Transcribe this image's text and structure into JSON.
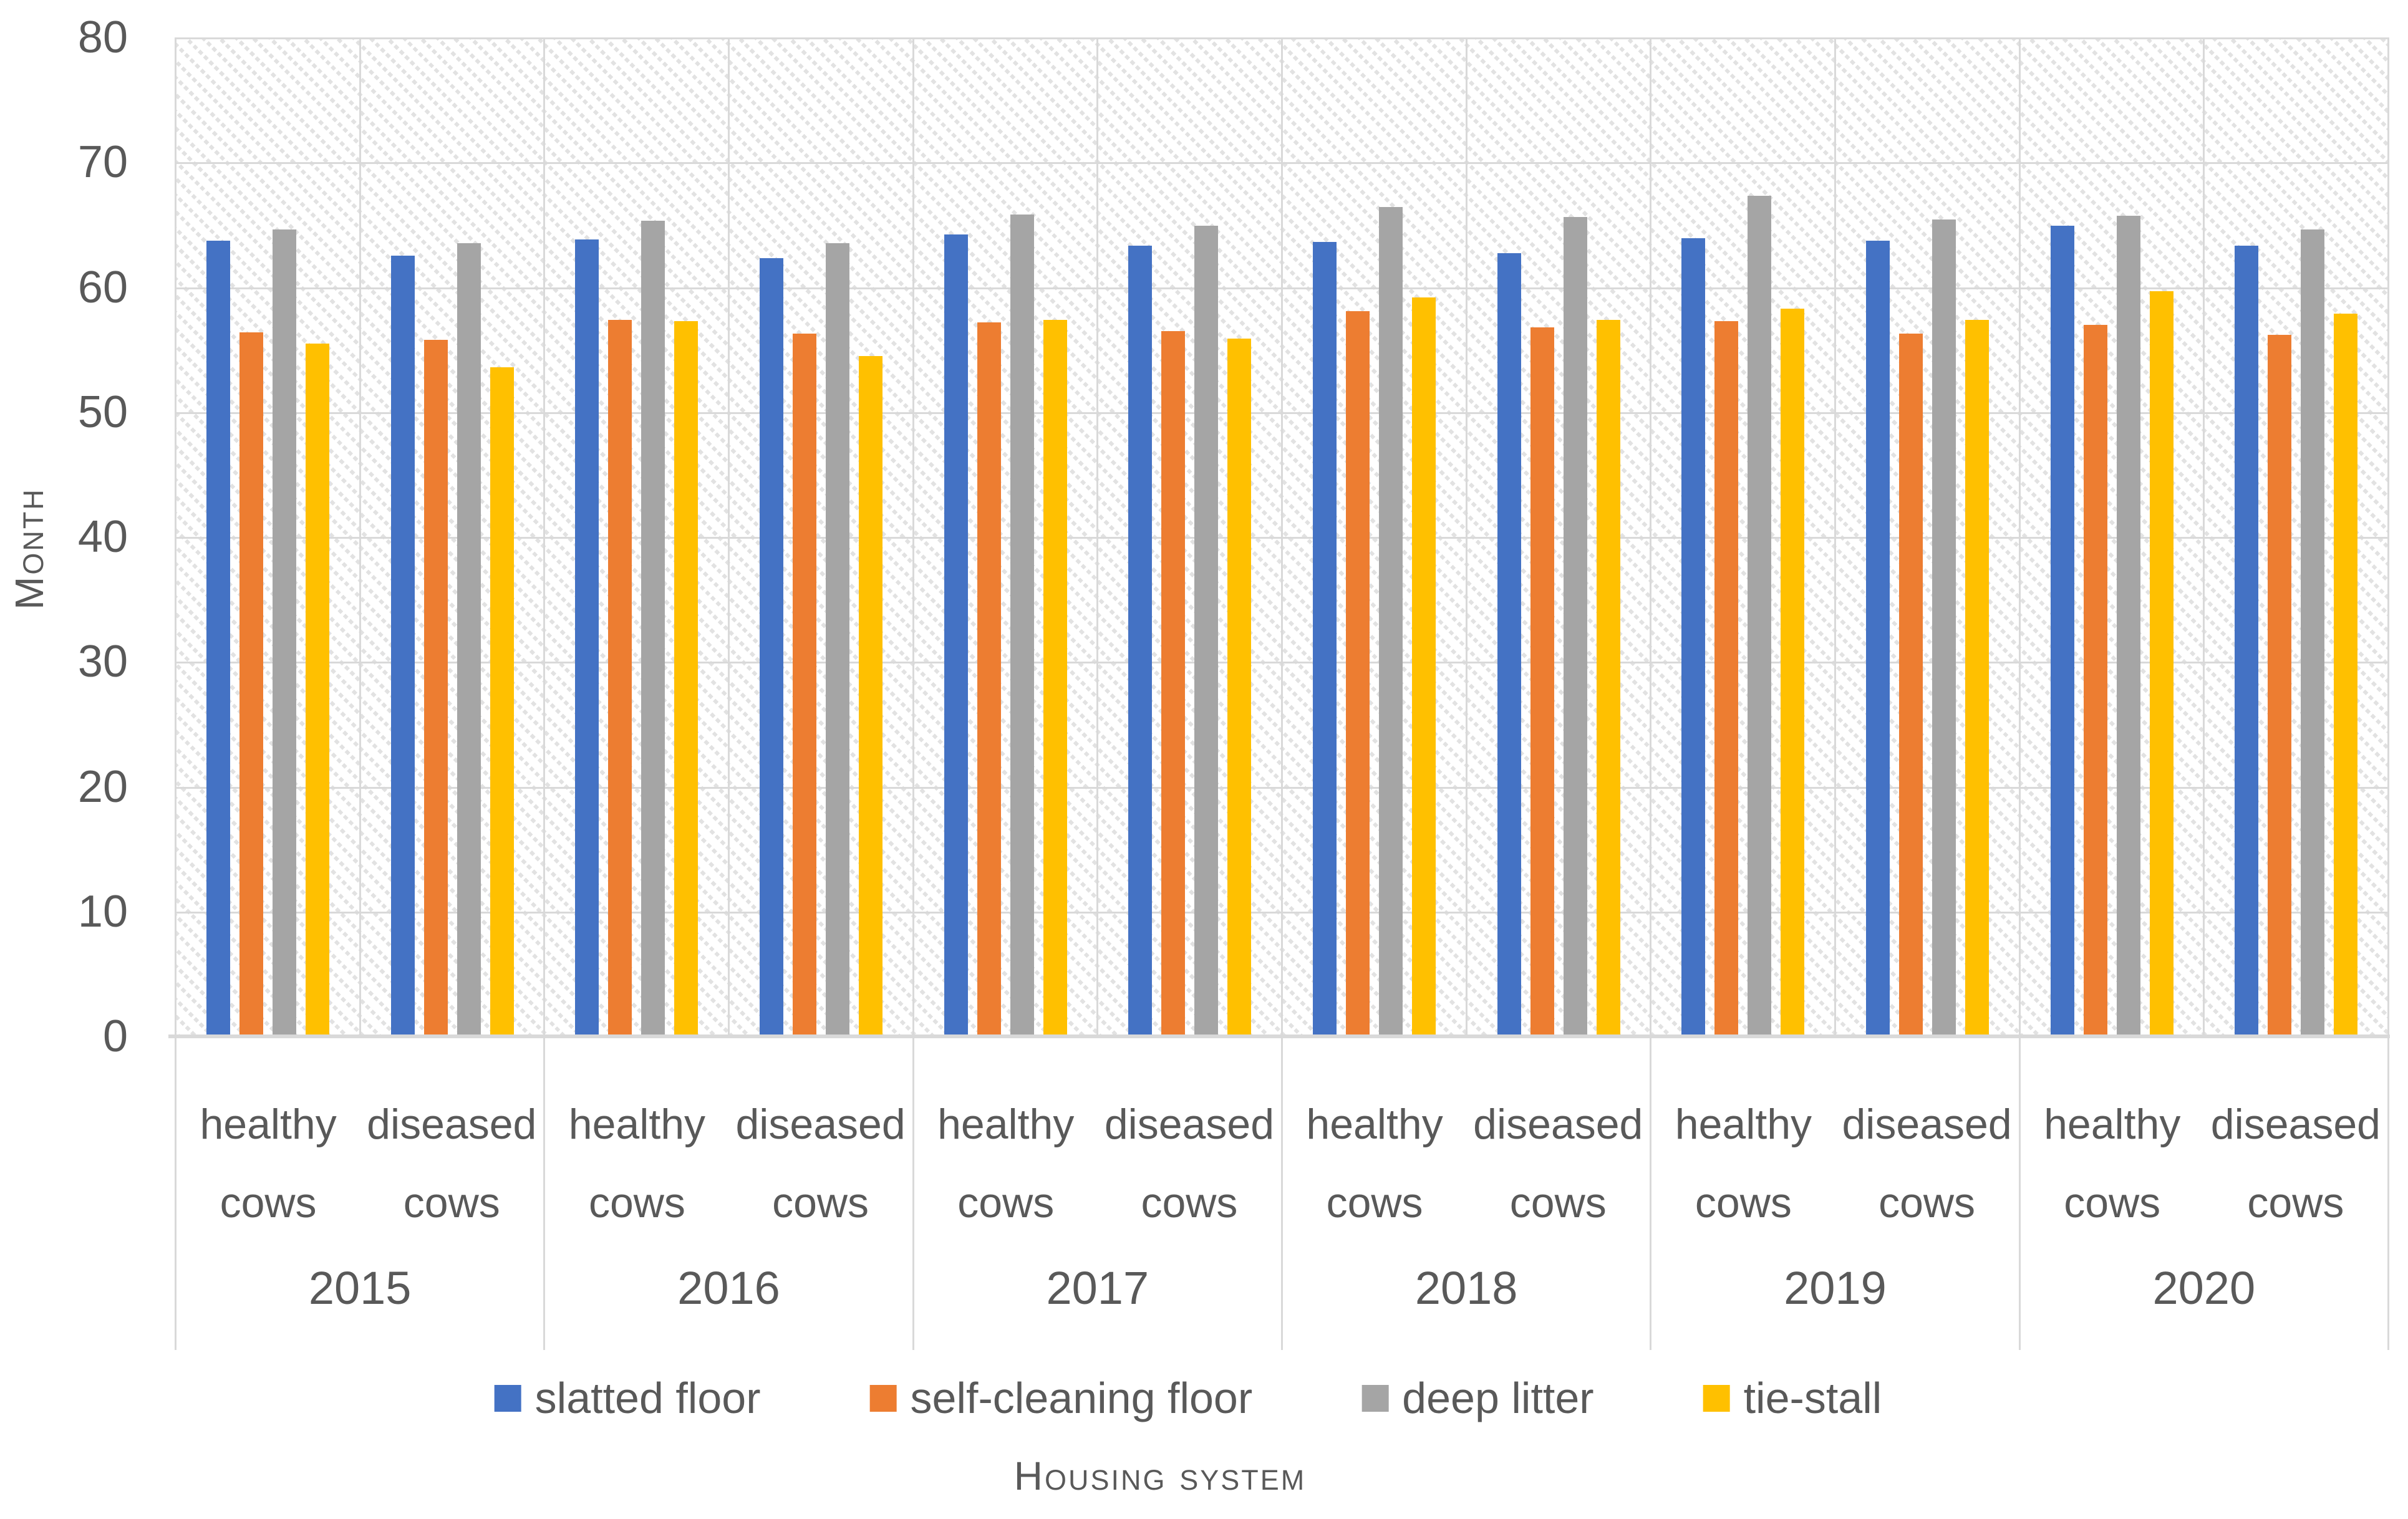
{
  "chart_data": {
    "type": "bar",
    "title": "",
    "ylabel": "Month",
    "xlabel": "Housing system",
    "ylim": [
      0,
      80
    ],
    "ytick_step": 10,
    "yticks": [
      0,
      10,
      20,
      30,
      40,
      50,
      60,
      70,
      80
    ],
    "grid": true,
    "legend_position": "bottom",
    "plot_background": "diagonal-hatch",
    "years": [
      "2015",
      "2016",
      "2017",
      "2018",
      "2019",
      "2020"
    ],
    "conditions": [
      "healthy cows",
      "diseased cows"
    ],
    "series": [
      {
        "name": "slatted floor",
        "color": "#4472C4",
        "values": [
          [
            63.7,
            62.5
          ],
          [
            63.8,
            62.3
          ],
          [
            64.2,
            63.3
          ],
          [
            63.6,
            62.7
          ],
          [
            63.9,
            63.7
          ],
          [
            64.9,
            63.3
          ]
        ]
      },
      {
        "name": "self-cleaning floor",
        "color": "#ED7D31",
        "values": [
          [
            56.4,
            55.8
          ],
          [
            57.4,
            56.3
          ],
          [
            57.2,
            56.5
          ],
          [
            58.1,
            56.8
          ],
          [
            57.3,
            56.3
          ],
          [
            57.0,
            56.2
          ]
        ]
      },
      {
        "name": "deep litter",
        "color": "#A5A5A5",
        "values": [
          [
            64.6,
            63.5
          ],
          [
            65.3,
            63.5
          ],
          [
            65.8,
            64.9
          ],
          [
            66.4,
            65.6
          ],
          [
            67.3,
            65.4
          ],
          [
            65.7,
            64.6
          ]
        ]
      },
      {
        "name": "tie-stall",
        "color": "#FFC000",
        "values": [
          [
            55.5,
            53.6
          ],
          [
            57.3,
            54.5
          ],
          [
            57.4,
            55.9
          ],
          [
            59.2,
            57.4
          ],
          [
            58.3,
            57.4
          ],
          [
            59.7,
            57.9
          ]
        ]
      }
    ],
    "colors": {
      "text": "#595959",
      "gridline": "#D9D9D9",
      "axis_line": "#D9D9D9",
      "background": "#FFFFFF"
    }
  }
}
